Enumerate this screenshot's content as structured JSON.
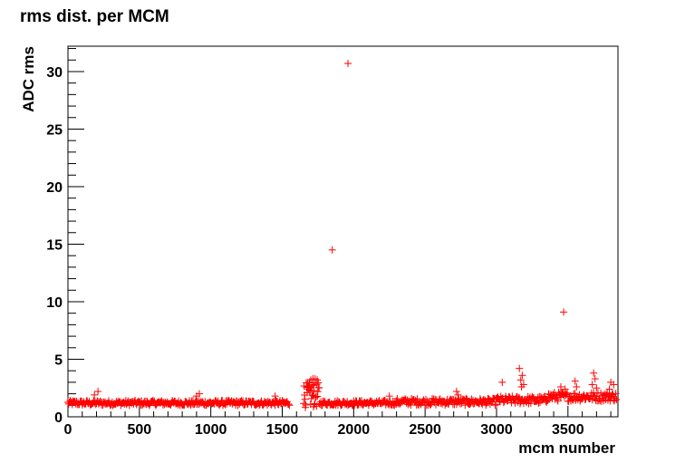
{
  "chart_data": {
    "type": "scatter",
    "title": "rms dist. per MCM",
    "xlabel": "mcm number",
    "ylabel": "ADC rms",
    "xlim": [
      0,
      3850
    ],
    "ylim": [
      0,
      32.2
    ],
    "x_ticks": [
      0,
      500,
      1000,
      1500,
      2000,
      2500,
      3000,
      3500
    ],
    "y_ticks": [
      0,
      5,
      10,
      15,
      20,
      25,
      30
    ],
    "grid": false,
    "legend": "none",
    "marker": "plus",
    "color": "#ff0000",
    "bands": [
      {
        "x_start": 0,
        "x_end": 1550,
        "base": 1.2,
        "spread": 0.22,
        "step": 5
      },
      {
        "x_start": 1650,
        "x_end": 1760,
        "base": 1.9,
        "spread": 1.1,
        "step": 3
      },
      {
        "x_start": 1760,
        "x_end": 2300,
        "base": 1.2,
        "spread": 0.22,
        "step": 5
      },
      {
        "x_start": 2300,
        "x_end": 3000,
        "base": 1.3,
        "spread": 0.3,
        "step": 5
      },
      {
        "x_start": 3000,
        "x_end": 3350,
        "base": 1.45,
        "spread": 0.35,
        "step": 5
      },
      {
        "x_start": 3350,
        "x_end": 3840,
        "base": 1.75,
        "spread": 0.4,
        "step": 5
      }
    ],
    "points": [
      [
        1960,
        30.7
      ],
      [
        1850,
        14.5
      ],
      [
        3470,
        9.1
      ],
      [
        210,
        2.2
      ],
      [
        185,
        1.9
      ],
      [
        920,
        2.0
      ],
      [
        900,
        1.8
      ],
      [
        1450,
        1.8
      ],
      [
        1690,
        3.0
      ],
      [
        1700,
        3.2
      ],
      [
        1715,
        3.3
      ],
      [
        1730,
        3.3
      ],
      [
        1745,
        3.2
      ],
      [
        1680,
        2.6
      ],
      [
        1720,
        2.7
      ],
      [
        2250,
        1.8
      ],
      [
        2720,
        2.2
      ],
      [
        2730,
        1.9
      ],
      [
        3040,
        3.0
      ],
      [
        3160,
        4.2
      ],
      [
        3180,
        3.6
      ],
      [
        3170,
        3.2
      ],
      [
        3175,
        2.6
      ],
      [
        3190,
        2.8
      ],
      [
        3450,
        2.6
      ],
      [
        3480,
        2.4
      ],
      [
        3550,
        3.1
      ],
      [
        3560,
        2.6
      ],
      [
        3680,
        3.8
      ],
      [
        3690,
        3.3
      ],
      [
        3670,
        2.8
      ],
      [
        3700,
        2.5
      ],
      [
        3800,
        3.0
      ],
      [
        3820,
        2.8
      ],
      [
        3790,
        2.4
      ]
    ]
  }
}
